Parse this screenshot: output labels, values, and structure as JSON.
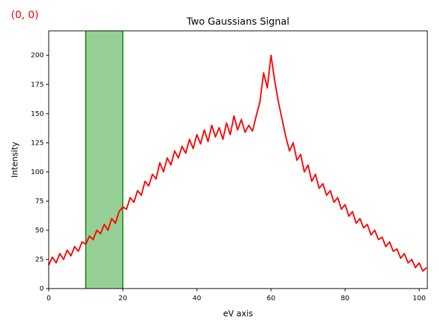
{
  "chart_data": {
    "type": "line",
    "title": "Two Gaussians Signal",
    "x_label": "eV axis",
    "y_label": "Intensity",
    "annotation": "(0, 0)",
    "annotation_color": "#ff0000",
    "color": "#ff0000",
    "span": {
      "x": [
        10,
        20
      ],
      "color": "#2ca02c",
      "edge_color": "#008000"
    },
    "xlim": [
      0,
      102.2
    ],
    "ylim": [
      0,
      221
    ],
    "xticks": [
      0,
      20,
      40,
      60,
      80,
      100
    ],
    "yticks": [
      0,
      25,
      50,
      75,
      100,
      125,
      150,
      175,
      200
    ],
    "x": [
      0,
      1,
      2,
      3,
      4,
      5,
      6,
      7,
      8,
      9,
      10,
      11,
      12,
      13,
      14,
      15,
      16,
      17,
      18,
      19,
      20,
      21,
      22,
      23,
      24,
      25,
      26,
      27,
      28,
      29,
      30,
      31,
      32,
      33,
      34,
      35,
      36,
      37,
      38,
      39,
      40,
      41,
      42,
      43,
      44,
      45,
      46,
      47,
      48,
      49,
      50,
      51,
      52,
      53,
      54,
      55,
      56,
      57,
      58,
      59,
      60,
      61,
      62,
      63,
      64,
      65,
      66,
      67,
      68,
      69,
      70,
      71,
      72,
      73,
      74,
      75,
      76,
      77,
      78,
      79,
      80,
      81,
      82,
      83,
      84,
      85,
      86,
      87,
      88,
      89,
      90,
      91,
      92,
      93,
      94,
      95,
      96,
      97,
      98,
      99,
      100,
      101,
      102
    ],
    "values": [
      20,
      27,
      22,
      30,
      25,
      33,
      28,
      36,
      32,
      40,
      38,
      45,
      42,
      50,
      47,
      55,
      50,
      60,
      56,
      66,
      70,
      68,
      78,
      74,
      84,
      80,
      92,
      88,
      98,
      94,
      108,
      100,
      112,
      106,
      118,
      112,
      122,
      116,
      128,
      120,
      132,
      124,
      136,
      126,
      140,
      130,
      138,
      128,
      142,
      132,
      148,
      136,
      145,
      134,
      140,
      135,
      148,
      160,
      185,
      172,
      200,
      178,
      160,
      145,
      130,
      118,
      125,
      110,
      115,
      100,
      106,
      92,
      98,
      86,
      90,
      80,
      84,
      74,
      78,
      68,
      72,
      62,
      66,
      56,
      60,
      52,
      55,
      46,
      50,
      42,
      44,
      36,
      40,
      32,
      34,
      26,
      30,
      22,
      25,
      18,
      22,
      15,
      18
    ]
  }
}
